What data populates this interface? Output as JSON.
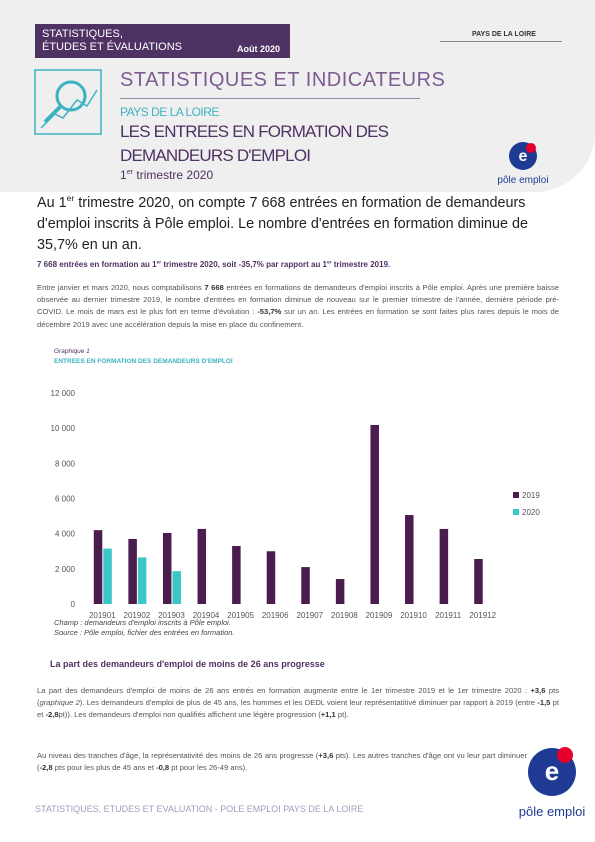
{
  "header": {
    "series_lines": [
      "STATISTIQUES,",
      "ÉTUDES ET ÉVALUATIONS"
    ],
    "date": "Août 2020",
    "region": "PAYS DE LA LOIRE",
    "banner": "STATISTIQUES ET INDICATEURS",
    "subregion": "PAYS DE LA LOIRE",
    "title_lines": [
      "LES ENTREES EN FORMATION DES",
      "DEMANDEURS D'EMPLOI"
    ],
    "period": [
      "1",
      "er",
      " trimestre 2020"
    ],
    "logo": "pôle emploi"
  },
  "lead": [
    "Au 1",
    "er",
    " trimestre 2020, on compte 7 668 entrées en formation de demandeurs d'emploi inscrits à Pôle emploi. Le nombre d'entrées en formation diminue de 35,7% en un an."
  ],
  "key_sentence": [
    "7 668 entrées en formation au 1",
    "er",
    " trimestre 2020, soit -35,7%  par rapport au 1",
    "er",
    " trimestre 2019."
  ],
  "paragraph_1": [
    "Entre janvier et mars 2020, nous comptabilisons ",
    "7 668",
    " entrées en formations de demandeurs d'emploi inscrits à Pôle emploi. Après une première baisse observée au dernier trimestre 2019, le nombre d'entrées en formation diminue de nouveau sur le premier trimestre de l'année, dernière période pré-COVID. Le mois de mars est le plus fort en terme d'évolution : ",
    "-53,7%",
    " sur un an. Les entrées en formation se sont faites plus rares depuis le mois de décembre 2019 avec une accélération depuis la mise en place du confinement."
  ],
  "chart_label": "Graphique 1",
  "chart_data": {
    "type": "bar",
    "title": "ENTREES EN FORMATION DES DEMANDEURS D'EMPLOI",
    "categories": [
      "201901",
      "201902",
      "201903",
      "201904",
      "201905",
      "201906",
      "201907",
      "201908",
      "201909",
      "201910",
      "201911",
      "201912"
    ],
    "series": [
      {
        "name": "2019",
        "color": "#4b1d4f",
        "values": [
          4200,
          3700,
          4040,
          4270,
          3300,
          3000,
          2100,
          1420,
          10180,
          5060,
          4270,
          2560
        ]
      },
      {
        "name": "2020",
        "color": "#3cc6c8",
        "values": [
          3150,
          2650,
          1868,
          null,
          null,
          null,
          null,
          null,
          null,
          null,
          null,
          null
        ]
      }
    ],
    "ylim": [
      0,
      12000
    ],
    "yticks": [
      0,
      {
        "value": 2000,
        "label": "2 000"
      },
      {
        "value": 4000,
        "label": "4 000"
      },
      {
        "value": 6000,
        "label": "6 000"
      },
      {
        "value": 8000,
        "label": "8 000"
      },
      {
        "value": 10000,
        "label": "10 000"
      },
      {
        "value": 12000,
        "label": "12 000"
      }
    ],
    "legend": "right"
  },
  "chart_notes": [
    "Champ : demandeurs d'emploi inscrits à Pôle emploi.",
    "Source : Pôle emploi, fichier des entrées en formation."
  ],
  "section_heading": "La part des demandeurs d'emploi de moins de 26 ans progresse",
  "paragraph_2": [
    "La part des demandeurs d'emploi de moins de 26 ans entrés en formation augmente entre le 1er trimestre 2019 et le 1er trimestre 2020 : ",
    "+3,6",
    " pts (",
    "graphique 2",
    "). Les demandeurs d'emploi de plus de 45 ans, les hommes et les DEDL voient leur représentatitivé diminuer par rapport à 2019 (entre ",
    "-1,5",
    " pt et ",
    "-2,8",
    "pt)). Les demandeurs d'emploi non qualifiés affichent une légère progression (",
    "+1,1",
    " pt)."
  ],
  "paragraph_3": [
    "Au niveau des tranches d'âge, la représentativité des moins de 26 ans progresse (",
    "+3,6",
    " pts). Les autres tranches d'âge ont vu leur part diminuer (",
    "-2,8",
    " pts pour les plus de 45 ans et ",
    "-0,8",
    " pt pour les 26-49 ans)."
  ],
  "footer": "STATISTIQUES, ETUDES ET EVALUATION - POLE EMPLOI PAYS DE LA LOIRE"
}
